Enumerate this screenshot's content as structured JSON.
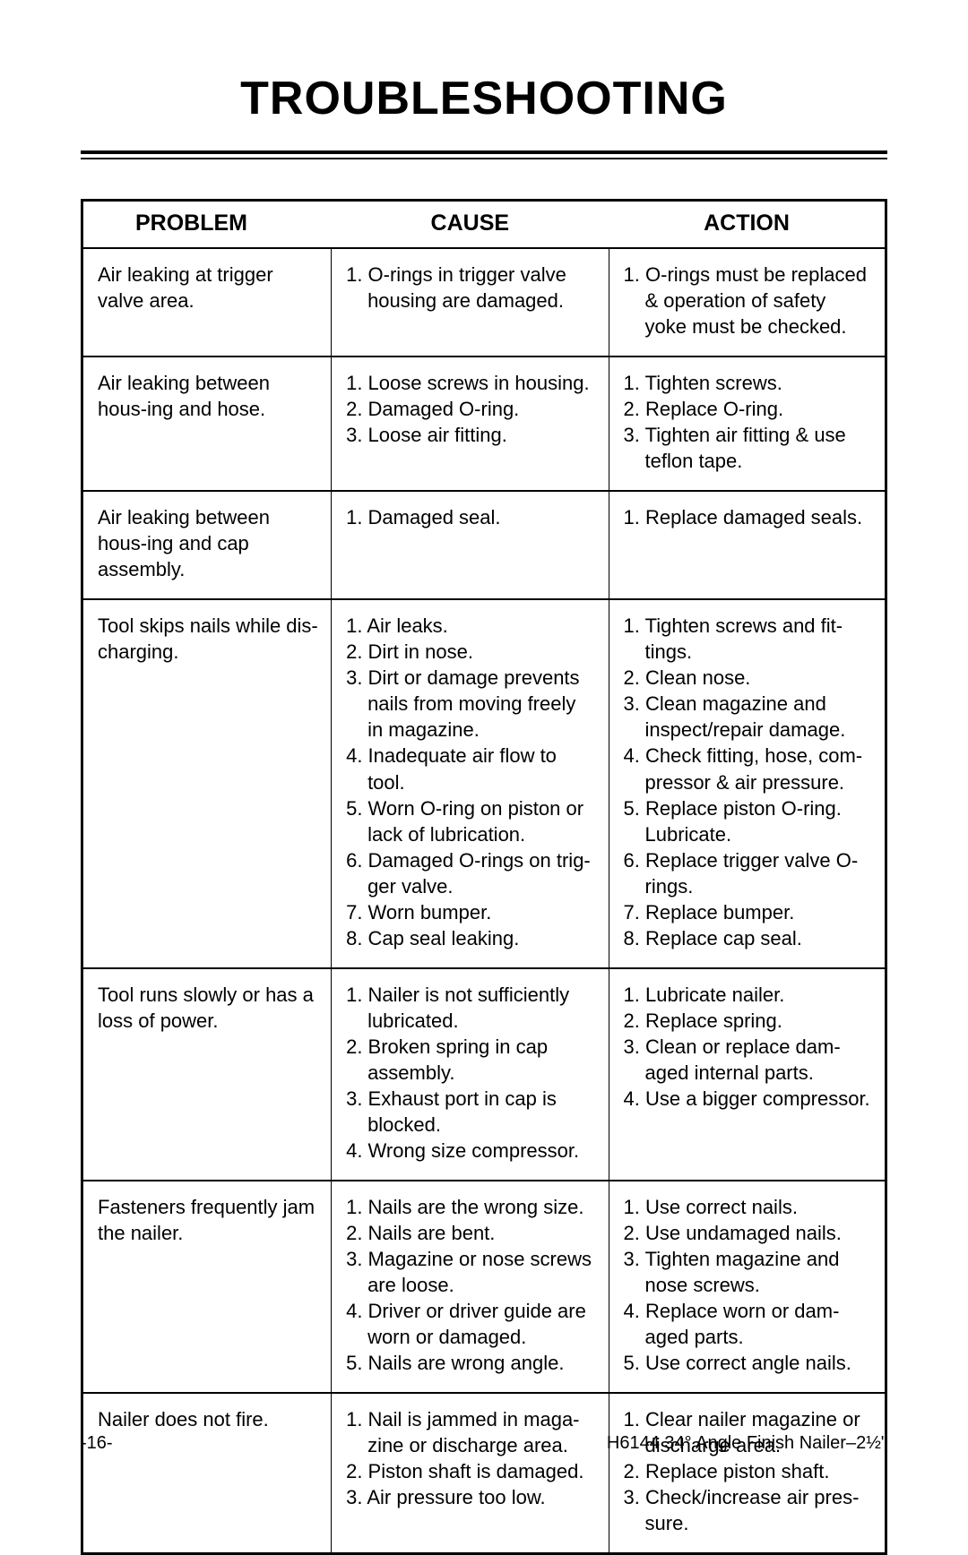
{
  "title": "TROUBLESHOOTING",
  "headers": {
    "problem": "PROBLEM",
    "cause": "CAUSE",
    "action": "ACTION"
  },
  "rows": [
    {
      "problem": "Air leaking at trigger valve area.",
      "cause": [
        "O-rings in trigger valve housing are damaged."
      ],
      "action": [
        "O-rings must be replaced & operation of safety yoke must be checked."
      ]
    },
    {
      "problem": "Air leaking between hous-ing and hose.",
      "cause": [
        "Loose screws in housing.",
        "Damaged O-ring.",
        "Loose air fitting."
      ],
      "action": [
        "Tighten screws.",
        "Replace O-ring.",
        "Tighten air fitting & use teflon tape."
      ]
    },
    {
      "problem": "Air leaking between hous-ing and cap assembly.",
      "cause": [
        "Damaged seal."
      ],
      "action": [
        "Replace damaged seals."
      ]
    },
    {
      "problem": "Tool skips nails while dis-charging.",
      "cause": [
        "Air leaks.",
        "Dirt in nose.",
        "Dirt or damage prevents nails from moving freely in magazine.",
        "Inadequate air flow to tool.",
        "Worn O-ring on piston or lack of lubrication.",
        "Damaged O-rings on trig-ger valve.",
        "Worn bumper.",
        "Cap seal leaking."
      ],
      "action": [
        "Tighten screws and fit-tings.",
        "Clean nose.",
        "Clean magazine and inspect/repair damage.",
        "Check fitting, hose, com-pressor & air pressure.",
        "Replace piston O-ring. Lubricate.",
        "Replace trigger valve O-rings.",
        "Replace bumper.",
        "Replace cap seal."
      ]
    },
    {
      "problem": "Tool runs slowly or has a loss of power.",
      "cause": [
        "Nailer is not sufficiently lubricated.",
        "Broken spring in cap assembly.",
        "Exhaust port in cap is blocked.",
        "Wrong size compressor."
      ],
      "action": [
        "Lubricate nailer.",
        "Replace spring.",
        "Clean or replace dam-aged internal parts.",
        "Use a bigger compressor."
      ]
    },
    {
      "problem": "Fasteners frequently jam the nailer.",
      "cause": [
        "Nails are the wrong size.",
        "Nails are bent.",
        "Magazine or nose screws are loose.",
        "Driver or driver guide are worn or damaged.",
        "Nails are wrong angle."
      ],
      "action": [
        "Use correct nails.",
        "Use undamaged nails.",
        "Tighten magazine and nose screws.",
        "Replace worn or dam-aged parts.",
        "Use correct angle nails."
      ]
    },
    {
      "problem": "Nailer does not fire.",
      "cause": [
        "Nail is jammed in maga-zine or discharge area.",
        "Piston shaft is damaged.",
        "Air pressure too low."
      ],
      "action": [
        "Clear nailer magazine or discharge area.",
        "Replace piston shaft.",
        "Check/increase air pres-sure."
      ]
    }
  ],
  "footer": {
    "page": "-16-",
    "doc": "H6144 34° Angle Finish Nailer–2½\""
  }
}
